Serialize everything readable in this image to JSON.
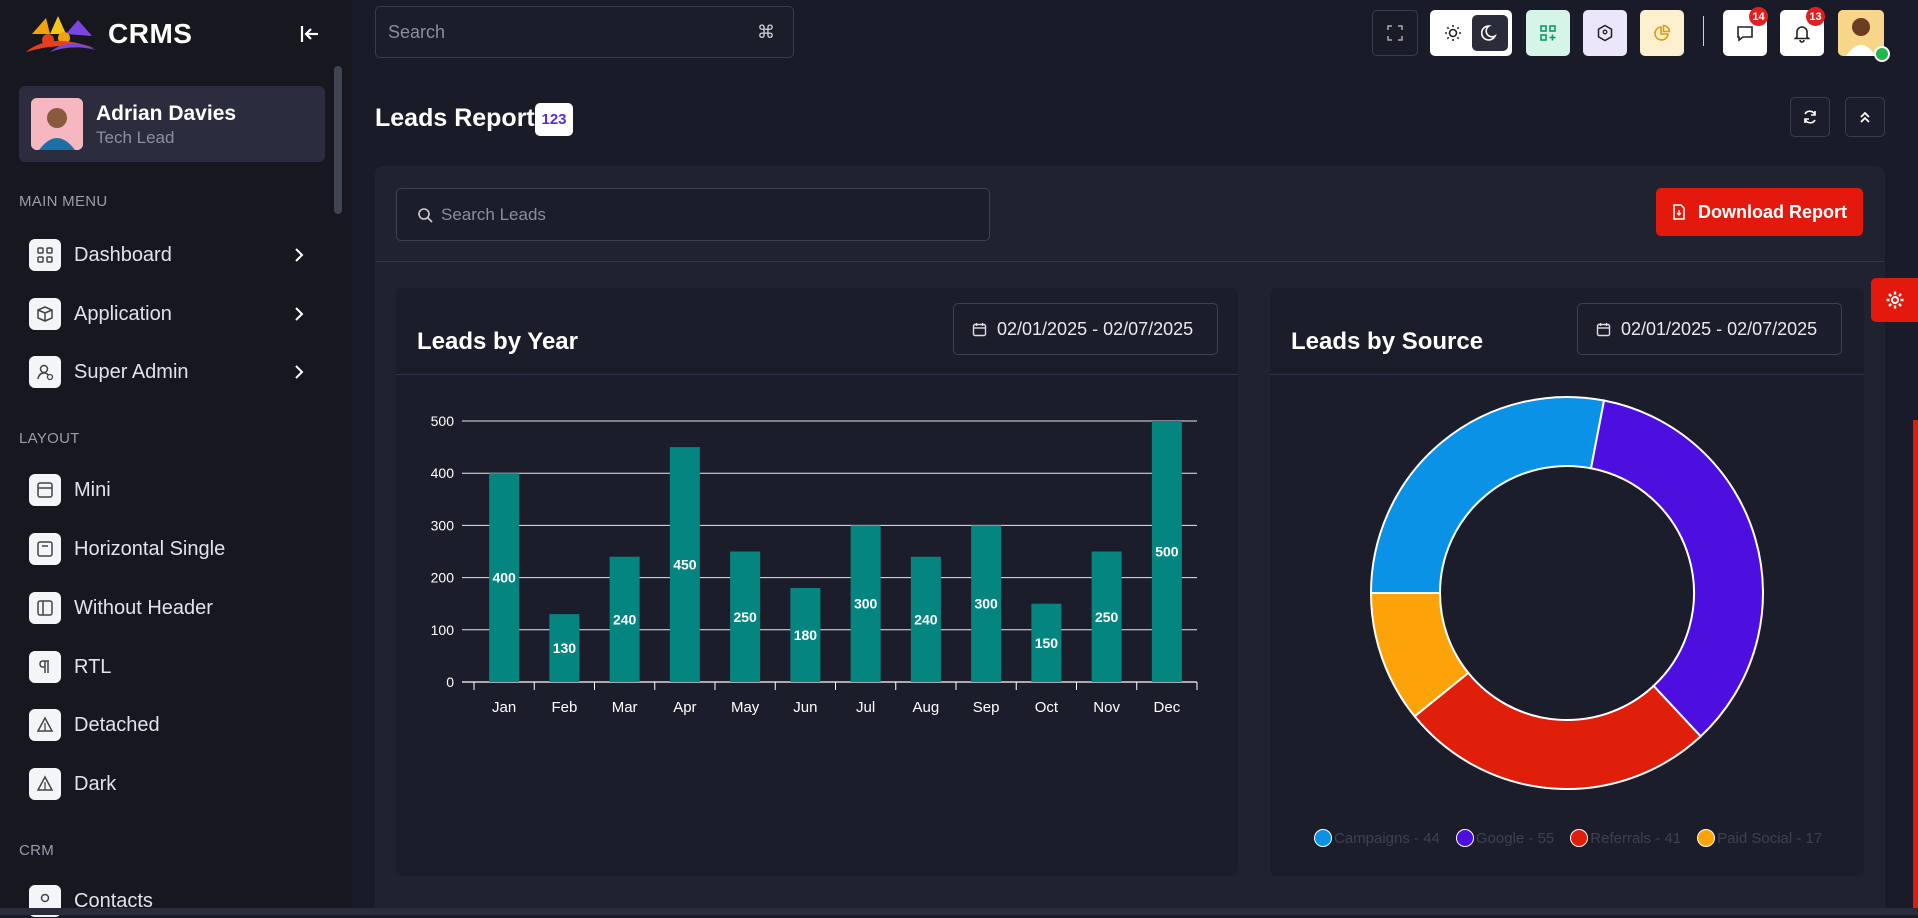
{
  "brand": {
    "name": "CRMS"
  },
  "user": {
    "name": "Adrian Davies",
    "role": "Tech Lead"
  },
  "sidebar": {
    "sections": [
      "MAIN MENU",
      "LAYOUT",
      "CRM"
    ],
    "main_menu": [
      {
        "label": "Dashboard",
        "icon": "grid-icon"
      },
      {
        "label": "Application",
        "icon": "box-icon"
      },
      {
        "label": "Super Admin",
        "icon": "user-star-icon"
      }
    ],
    "layout": [
      {
        "label": "Mini",
        "icon": "layout-icon"
      },
      {
        "label": "Horizontal Single",
        "icon": "layout-top-icon"
      },
      {
        "label": "Without Header",
        "icon": "layout-sidebar-icon"
      },
      {
        "label": "RTL",
        "icon": "pilcrow-icon"
      },
      {
        "label": "Detached",
        "icon": "triangle-icon"
      },
      {
        "label": "Dark",
        "icon": "triangle-icon"
      }
    ],
    "crm": [
      {
        "label": "Contacts",
        "icon": "user-icon"
      }
    ]
  },
  "header": {
    "search_placeholder": "Search",
    "search_shortcut": "⌘",
    "notifications": {
      "messages": "14",
      "alerts": "13"
    }
  },
  "page": {
    "title": "Leads Report",
    "count": "123"
  },
  "toolbar": {
    "search_placeholder": "Search Leads",
    "download_label": "Download Report"
  },
  "cards": {
    "year": {
      "title": "Leads by Year",
      "date_range": "02/01/2025 - 02/07/2025"
    },
    "source": {
      "title": "Leads by Source",
      "date_range": "02/01/2025 - 02/07/2025"
    }
  },
  "chart_data": [
    {
      "type": "bar",
      "categories": [
        "Jan",
        "Feb",
        "Mar",
        "Apr",
        "May",
        "Jun",
        "Jul",
        "Aug",
        "Sep",
        "Oct",
        "Nov",
        "Dec"
      ],
      "values": [
        400,
        130,
        240,
        450,
        250,
        180,
        300,
        240,
        300,
        150,
        250,
        500
      ],
      "yticks": [
        "0",
        "100",
        "200",
        "300",
        "400",
        "500"
      ],
      "ylim": [
        0,
        500
      ],
      "grid": true,
      "colors": {
        "bar": "#05857f"
      }
    },
    {
      "type": "pie",
      "donut": true,
      "slices": [
        {
          "label": "Campaigns - 44",
          "value": 44,
          "color": "#0a93e6"
        },
        {
          "label": "Google - 55",
          "value": 55,
          "color": "#4d0fe0"
        },
        {
          "label": "Referrals - 41",
          "value": 41,
          "color": "#e01f0a"
        },
        {
          "label": "Paid Social - 17",
          "value": 17,
          "color": "#fca30a"
        }
      ],
      "legend": "bottom"
    }
  ]
}
